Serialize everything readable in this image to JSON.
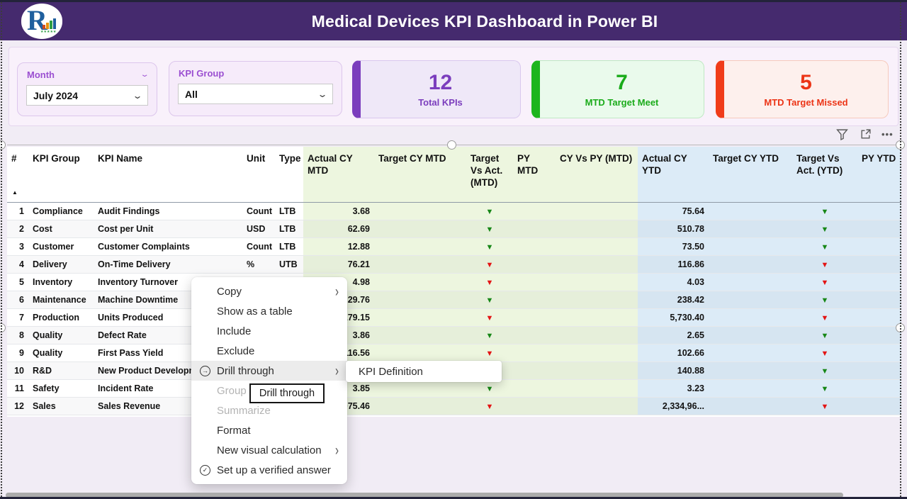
{
  "header": {
    "title": "Medical Devices KPI Dashboard in Power BI",
    "logo_letter": "R",
    "logo_stars": "★★★★★"
  },
  "filters": {
    "month": {
      "label": "Month",
      "value": "July 2024"
    },
    "kpi_group": {
      "label": "KPI Group",
      "value": "All"
    }
  },
  "kpi_cards": [
    {
      "value": "12",
      "label": "Total KPIs",
      "accent": "#7b3dbd"
    },
    {
      "value": "7",
      "label": "MTD Target Meet",
      "accent": "#1db51d"
    },
    {
      "value": "5",
      "label": "MTD Target Missed",
      "accent": "#f03c1a"
    }
  ],
  "visual_toolbar": {
    "icons": [
      "filter-icon",
      "focus-mode-icon",
      "more-options-icon"
    ]
  },
  "table": {
    "columns": [
      "#",
      "KPI Group",
      "KPI Name",
      "Unit",
      "Type",
      "Actual CY MTD",
      "Target CY MTD",
      "Target Vs Act. (MTD)",
      "PY MTD",
      "CY Vs PY (MTD)",
      "Actual CY YTD",
      "Target CY YTD",
      "Target Vs Act. (YTD)",
      "PY YTD"
    ],
    "sort_column": "#",
    "sort_indicator": "▲",
    "rows": [
      {
        "num": "1",
        "group": "Compliance",
        "name": "Audit Findings",
        "unit": "Count",
        "type": "LTB",
        "actual_mtd": "3.68",
        "target_mtd": "",
        "tva_mtd": "down-green",
        "py_mtd": "",
        "cy_vs_py_mtd": "",
        "actual_ytd": "75.64",
        "target_ytd": "",
        "tva_ytd": "down-green",
        "py_ytd": ""
      },
      {
        "num": "2",
        "group": "Cost",
        "name": "Cost per Unit",
        "unit": "USD",
        "type": "LTB",
        "actual_mtd": "62.69",
        "target_mtd": "",
        "tva_mtd": "down-green",
        "py_mtd": "",
        "cy_vs_py_mtd": "",
        "actual_ytd": "510.78",
        "target_ytd": "",
        "tva_ytd": "down-green",
        "py_ytd": ""
      },
      {
        "num": "3",
        "group": "Customer",
        "name": "Customer Complaints",
        "unit": "Count",
        "type": "LTB",
        "actual_mtd": "12.88",
        "target_mtd": "",
        "tva_mtd": "down-green",
        "py_mtd": "",
        "cy_vs_py_mtd": "",
        "actual_ytd": "73.50",
        "target_ytd": "",
        "tva_ytd": "down-green",
        "py_ytd": ""
      },
      {
        "num": "4",
        "group": "Delivery",
        "name": "On-Time Delivery",
        "unit": "%",
        "type": "UTB",
        "actual_mtd": "76.21",
        "target_mtd": "",
        "tva_mtd": "down-red",
        "py_mtd": "",
        "cy_vs_py_mtd": "",
        "actual_ytd": "116.86",
        "target_ytd": "",
        "tva_ytd": "down-red",
        "py_ytd": ""
      },
      {
        "num": "5",
        "group": "Inventory",
        "name": "Inventory Turnover",
        "unit": "",
        "type": "",
        "actual_mtd": "4.98",
        "target_mtd": "",
        "tva_mtd": "down-red",
        "py_mtd": "",
        "cy_vs_py_mtd": "",
        "actual_ytd": "4.03",
        "target_ytd": "",
        "tva_ytd": "down-red",
        "py_ytd": ""
      },
      {
        "num": "6",
        "group": "Maintenance",
        "name": "Machine Downtime",
        "unit": "",
        "type": "",
        "actual_mtd": "29.76",
        "target_mtd": "",
        "tva_mtd": "down-green",
        "py_mtd": "",
        "cy_vs_py_mtd": "",
        "actual_ytd": "238.42",
        "target_ytd": "",
        "tva_ytd": "down-green",
        "py_ytd": ""
      },
      {
        "num": "7",
        "group": "Production",
        "name": "Units Produced",
        "unit": "",
        "type": "",
        "actual_mtd": ",179.15",
        "target_mtd": "",
        "tva_mtd": "down-red",
        "py_mtd": "",
        "cy_vs_py_mtd": "",
        "actual_ytd": "5,730.40",
        "target_ytd": "",
        "tva_ytd": "down-red",
        "py_ytd": ""
      },
      {
        "num": "8",
        "group": "Quality",
        "name": "Defect Rate",
        "unit": "",
        "type": "",
        "actual_mtd": "3.86",
        "target_mtd": "",
        "tva_mtd": "down-green",
        "py_mtd": "",
        "cy_vs_py_mtd": "",
        "actual_ytd": "2.65",
        "target_ytd": "",
        "tva_ytd": "down-green",
        "py_ytd": ""
      },
      {
        "num": "9",
        "group": "Quality",
        "name": "First Pass Yield",
        "unit": "",
        "type": "",
        "actual_mtd": "116.56",
        "target_mtd": "",
        "tva_mtd": "down-red",
        "py_mtd": "",
        "cy_vs_py_mtd": "",
        "actual_ytd": "102.66",
        "target_ytd": "",
        "tva_ytd": "down-red",
        "py_ytd": ""
      },
      {
        "num": "10",
        "group": "R&D",
        "name": "New Product Development",
        "unit": "",
        "type": "",
        "actual_mtd": "",
        "target_mtd": "",
        "tva_mtd": "down-green",
        "py_mtd": "",
        "cy_vs_py_mtd": "",
        "actual_ytd": "140.88",
        "target_ytd": "",
        "tva_ytd": "down-green",
        "py_ytd": ""
      },
      {
        "num": "11",
        "group": "Safety",
        "name": "Incident Rate",
        "unit": "",
        "type": "",
        "actual_mtd": "3.85",
        "target_mtd": "",
        "tva_mtd": "down-green",
        "py_mtd": "",
        "cy_vs_py_mtd": "",
        "actual_ytd": "3.23",
        "target_ytd": "",
        "tva_ytd": "down-green",
        "py_ytd": ""
      },
      {
        "num": "12",
        "group": "Sales",
        "name": "Sales Revenue",
        "unit": "",
        "type": "",
        "actual_mtd": "075.46",
        "target_mtd": "",
        "tva_mtd": "down-red",
        "py_mtd": "",
        "cy_vs_py_mtd": "",
        "actual_ytd": "2,334,96...",
        "target_ytd": "",
        "tva_ytd": "down-red",
        "py_ytd": ""
      }
    ]
  },
  "context_menu": {
    "items": [
      {
        "label": "Copy",
        "icon": "",
        "submenu": true,
        "disabled": false,
        "highlighted": false
      },
      {
        "label": "Show as a table",
        "icon": "",
        "submenu": false,
        "disabled": false,
        "highlighted": false
      },
      {
        "label": "Include",
        "icon": "",
        "submenu": false,
        "disabled": false,
        "highlighted": false
      },
      {
        "label": "Exclude",
        "icon": "",
        "submenu": false,
        "disabled": false,
        "highlighted": false
      },
      {
        "label": "Drill through",
        "icon": "drill-through-icon",
        "submenu": true,
        "disabled": false,
        "highlighted": true
      },
      {
        "label": "Group",
        "icon": "",
        "submenu": false,
        "disabled": true,
        "highlighted": false
      },
      {
        "label": "Summarize",
        "icon": "",
        "submenu": false,
        "disabled": true,
        "highlighted": false
      },
      {
        "label": "Format",
        "icon": "",
        "submenu": false,
        "disabled": false,
        "highlighted": false
      },
      {
        "label": "New visual calculation",
        "icon": "",
        "submenu": true,
        "disabled": false,
        "highlighted": false
      },
      {
        "label": "Set up a verified answer",
        "icon": "verified-answer-icon",
        "submenu": false,
        "disabled": false,
        "highlighted": false
      }
    ],
    "submenu_item": "KPI Definition",
    "tooltip": "Drill through"
  },
  "colors": {
    "header_bg": "#452a6e",
    "mtd_group_bg": "#edf6df",
    "ytd_group_bg": "#dcebf7",
    "arrow_green": "#178717",
    "arrow_red": "#e31414",
    "total_accent": "#7b3dbd",
    "meet_accent": "#1db51d",
    "missed_accent": "#f03c1a"
  }
}
